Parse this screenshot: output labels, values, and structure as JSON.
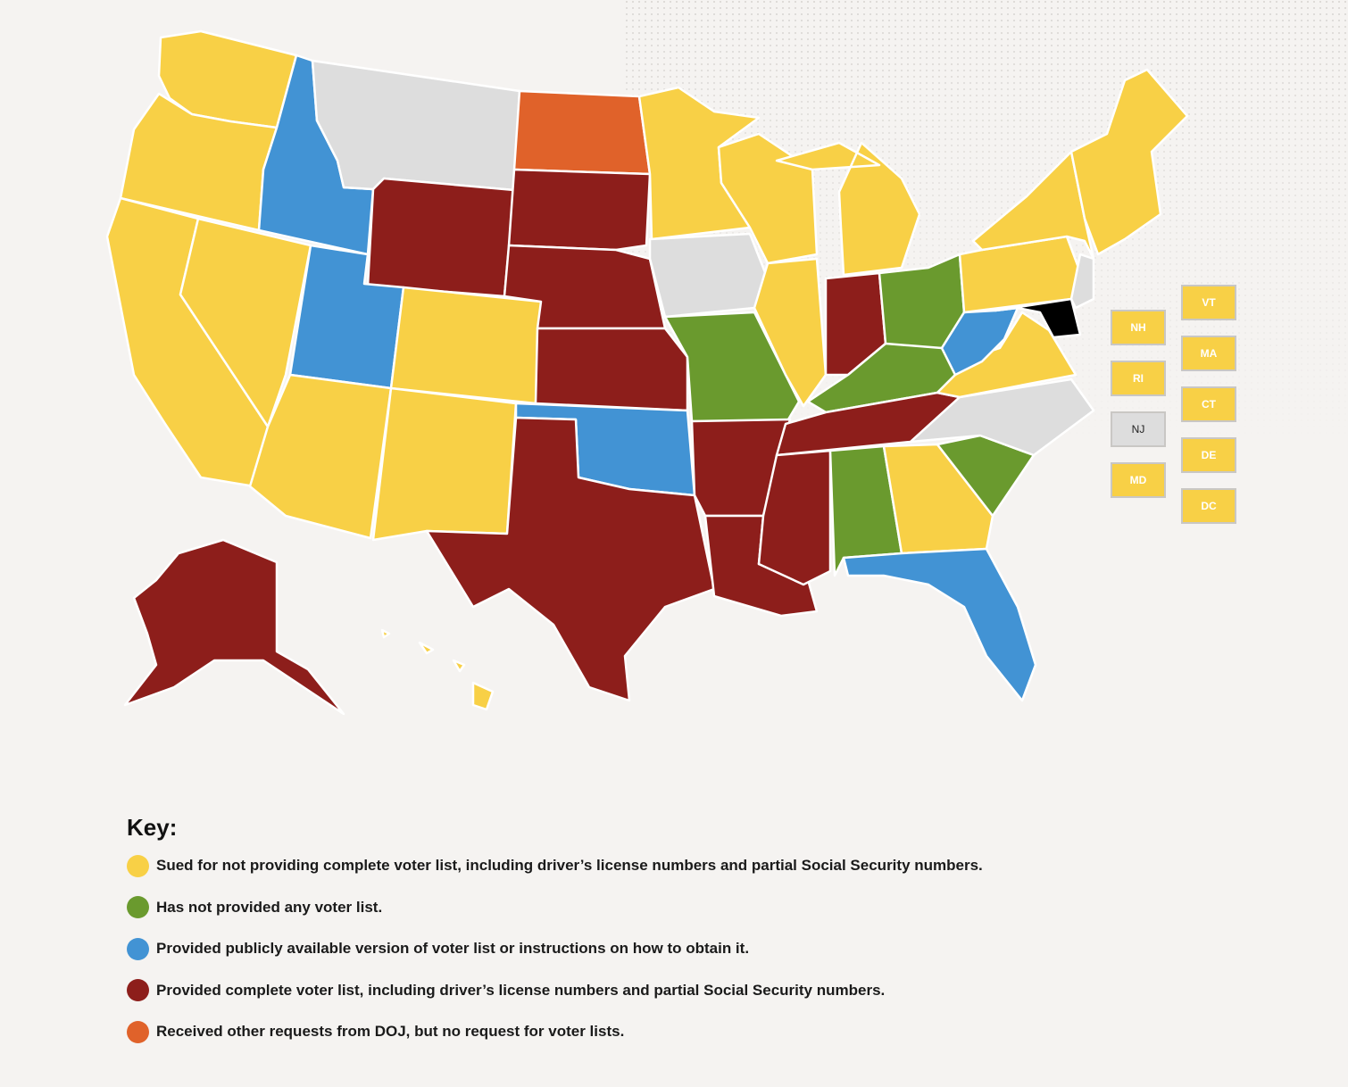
{
  "colors": {
    "sued": "#f8d046",
    "no_list": "#6a9a2e",
    "public": "#4293d4",
    "complete": "#8d1e1b",
    "other": "#e0622a",
    "none": "#dddddd"
  },
  "states": {
    "WA": "sued",
    "OR": "sued",
    "CA": "sued",
    "NV": "sued",
    "AZ": "sued",
    "CO": "sued",
    "NM": "sued",
    "ID": "public",
    "UT": "public",
    "MT": "none",
    "WY": "complete",
    "ND": "other",
    "SD": "complete",
    "NE": "complete",
    "KS": "complete",
    "OK": "public",
    "TX": "complete",
    "MN": "sued",
    "IA": "none",
    "MO": "no_list",
    "AR": "complete",
    "LA": "complete",
    "WI": "sued",
    "IL": "sued",
    "MI": "sued",
    "IN": "complete",
    "OH": "no_list",
    "KY": "no_list",
    "TN": "complete",
    "MS": "complete",
    "AL": "no_list",
    "GA": "sued",
    "FL": "public",
    "SC": "no_list",
    "NC": "none",
    "VA": "sued",
    "WV": "public",
    "PA": "sued",
    "NY": "sued",
    "NJ": "none",
    "NE_NEW": "sued",
    "AK": "complete",
    "HI": "sued"
  },
  "tiles": [
    {
      "label": "NH",
      "status": "sued"
    },
    {
      "label": "RI",
      "status": "sued"
    },
    {
      "label": "NJ",
      "status": "none"
    },
    {
      "label": "MD",
      "status": "sued"
    },
    {
      "label": "VT",
      "status": "sued"
    },
    {
      "label": "MA",
      "status": "sued"
    },
    {
      "label": "CT",
      "status": "sued"
    },
    {
      "label": "DE",
      "status": "sued"
    },
    {
      "label": "DC",
      "status": "sued"
    }
  ],
  "key": {
    "title": "Key:",
    "items": [
      {
        "status": "sued",
        "text": "Sued for not providing complete voter list, including driver’s license numbers and partial Social Security numbers."
      },
      {
        "status": "no_list",
        "text": "Has not provided any voter list."
      },
      {
        "status": "public",
        "text": "Provided publicly available version of voter list or instructions on how to obtain it."
      },
      {
        "status": "complete",
        "text": "Provided complete voter list, including driver’s license numbers and partial Social Security numbers."
      },
      {
        "status": "other",
        "text": "Received other requests from DOJ, but no request for voter lists."
      }
    ]
  }
}
